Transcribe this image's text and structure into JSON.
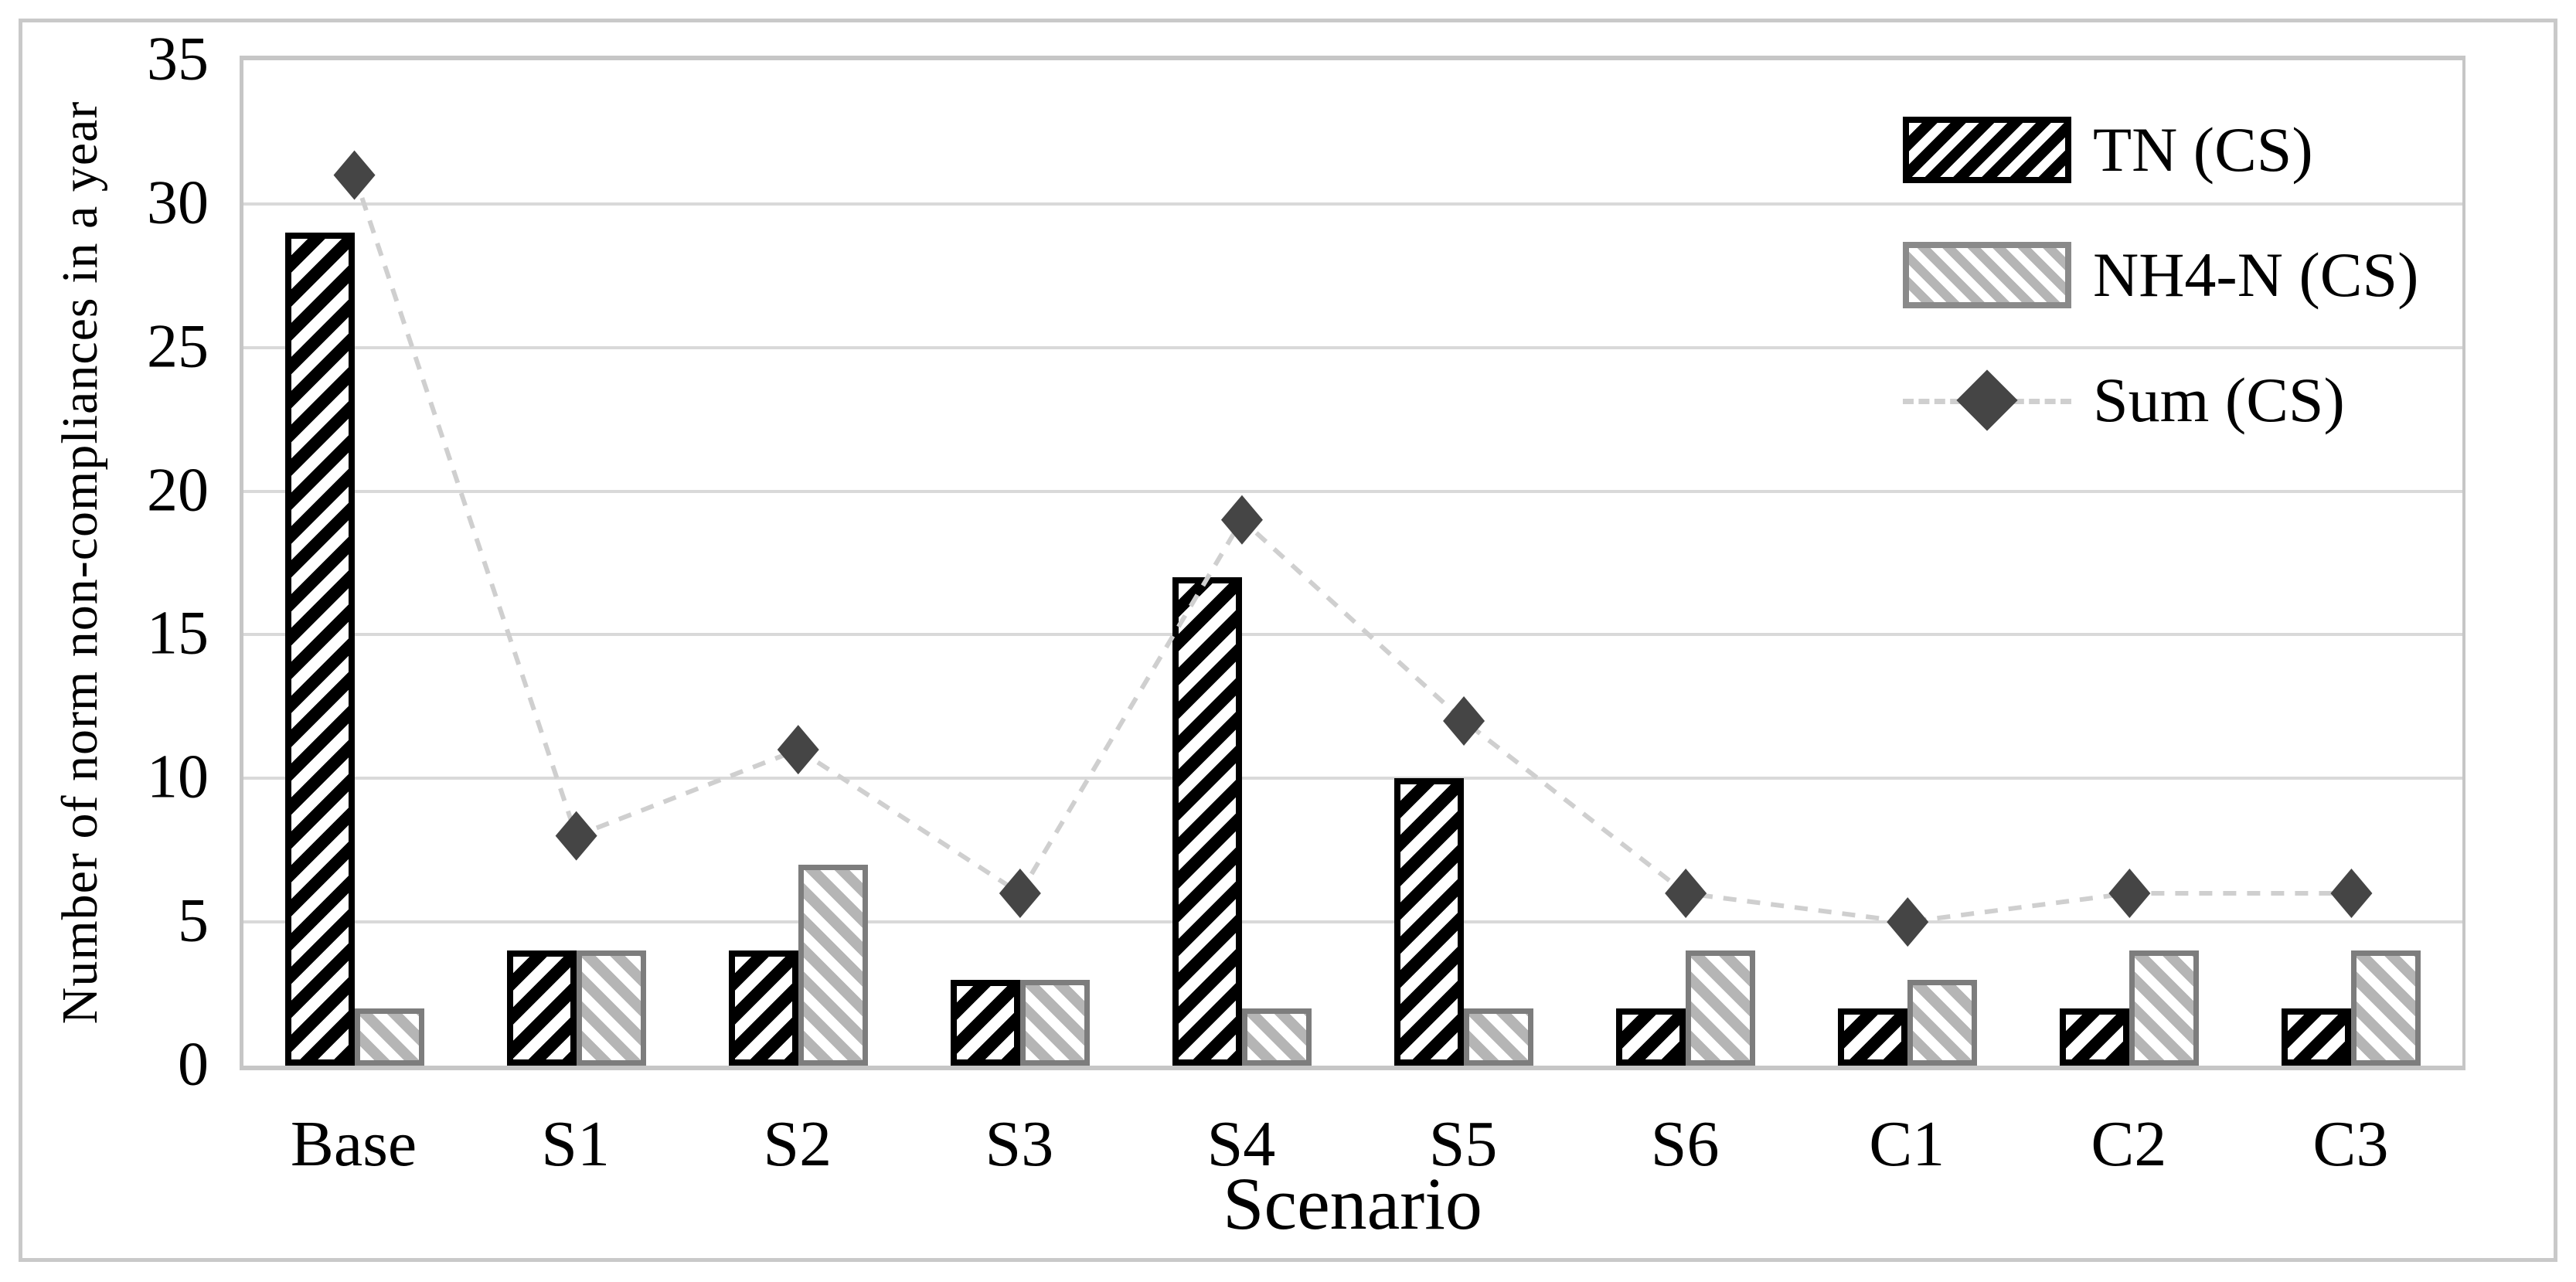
{
  "figure": {
    "background": "#ffffff",
    "border_color": "#c9c9c9"
  },
  "y_axis": {
    "title": "Number of norm non-compliances in a year",
    "ticks": [
      0,
      5,
      10,
      15,
      20,
      25,
      30,
      35
    ],
    "min": 0,
    "max": 35
  },
  "x_axis": {
    "title": "Scenario"
  },
  "legend": {
    "position": "top-right-inside",
    "items": [
      {
        "label": "TN (CS)",
        "style": "black-hatched-bar"
      },
      {
        "label": "NH4-N (CS)",
        "style": "gray-hatched-bar"
      },
      {
        "label": "Sum (CS)",
        "style": "diamond-dashed-line"
      }
    ]
  },
  "chart_data": {
    "type": "bar",
    "subtype": "grouped-bars-with-line-overlay",
    "title": "",
    "xlabel": "Scenario",
    "ylabel": "Number of norm non-compliances in a year",
    "ylim": [
      0,
      35
    ],
    "grid": "horizontal",
    "categories": [
      "Base",
      "S1",
      "S2",
      "S3",
      "S4",
      "S5",
      "S6",
      "C1",
      "C2",
      "C3"
    ],
    "series": [
      {
        "name": "TN (CS)",
        "type": "bar",
        "values": [
          29,
          4,
          4,
          3,
          17,
          10,
          2,
          2,
          2,
          2
        ]
      },
      {
        "name": "NH4-N (CS)",
        "type": "bar",
        "values": [
          2,
          4,
          7,
          3,
          2,
          2,
          4,
          3,
          4,
          4
        ]
      },
      {
        "name": "Sum (CS)",
        "type": "line",
        "values": [
          31,
          8,
          11,
          6,
          19,
          12,
          6,
          5,
          6,
          6
        ]
      }
    ]
  },
  "colors": {
    "tn_hatch": "#000000",
    "nh4_hatch": "#b5b5b5",
    "nh4_border": "#7d7d7d",
    "sum_marker": "#454545",
    "sum_line": "#cfcfcf",
    "gridline": "#d9d9d9",
    "text": "#000000"
  }
}
